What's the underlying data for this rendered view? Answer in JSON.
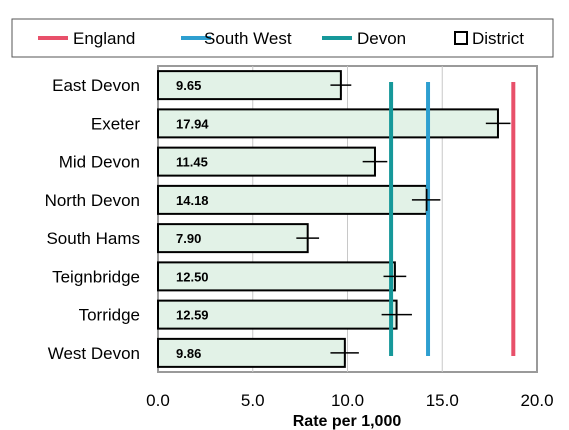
{
  "chart_data": {
    "type": "bar",
    "orientation": "horizontal",
    "categories": [
      "East Devon",
      "Exeter",
      "Mid Devon",
      "North Devon",
      "South Hams",
      "Teignbridge",
      "Torridge",
      "West Devon"
    ],
    "values": [
      9.65,
      17.94,
      11.45,
      14.18,
      7.9,
      12.5,
      12.59,
      9.86
    ],
    "value_labels": [
      "9.65",
      "17.94",
      "11.45",
      "14.18",
      "7.90",
      "12.50",
      "12.59",
      "9.86"
    ],
    "error_bars": [
      [
        9.1,
        10.2
      ],
      [
        17.3,
        18.6
      ],
      [
        10.8,
        12.1
      ],
      [
        13.4,
        14.9
      ],
      [
        7.3,
        8.5
      ],
      [
        11.9,
        13.1
      ],
      [
        11.8,
        13.4
      ],
      [
        9.1,
        10.6
      ]
    ],
    "reference_lines": [
      {
        "name": "England",
        "value": 18.75,
        "color": "#e8506a"
      },
      {
        "name": "South West",
        "value": 14.25,
        "color": "#2e9fd0"
      },
      {
        "name": "Devon",
        "value": 12.3,
        "color": "#16989a"
      }
    ],
    "legend": {
      "position": "top",
      "entries": [
        {
          "name": "England",
          "color": "#e8506a",
          "kind": "line"
        },
        {
          "name": "South West",
          "color": "#2e9fd0",
          "kind": "line"
        },
        {
          "name": "Devon",
          "color": "#16989a",
          "kind": "line"
        },
        {
          "name": "District",
          "color": "#ffffff",
          "kind": "box"
        }
      ]
    },
    "xlabel": "Rate per 1,000",
    "xlim": [
      0,
      20
    ],
    "xticks": [
      0,
      5,
      10,
      15,
      20
    ],
    "xtick_labels": [
      "0.0",
      "5.0",
      "10.0",
      "15.0",
      "20.0"
    ],
    "grid": "vertical",
    "bar_fill": "#e2f2e7",
    "bar_stroke": "#000000"
  }
}
